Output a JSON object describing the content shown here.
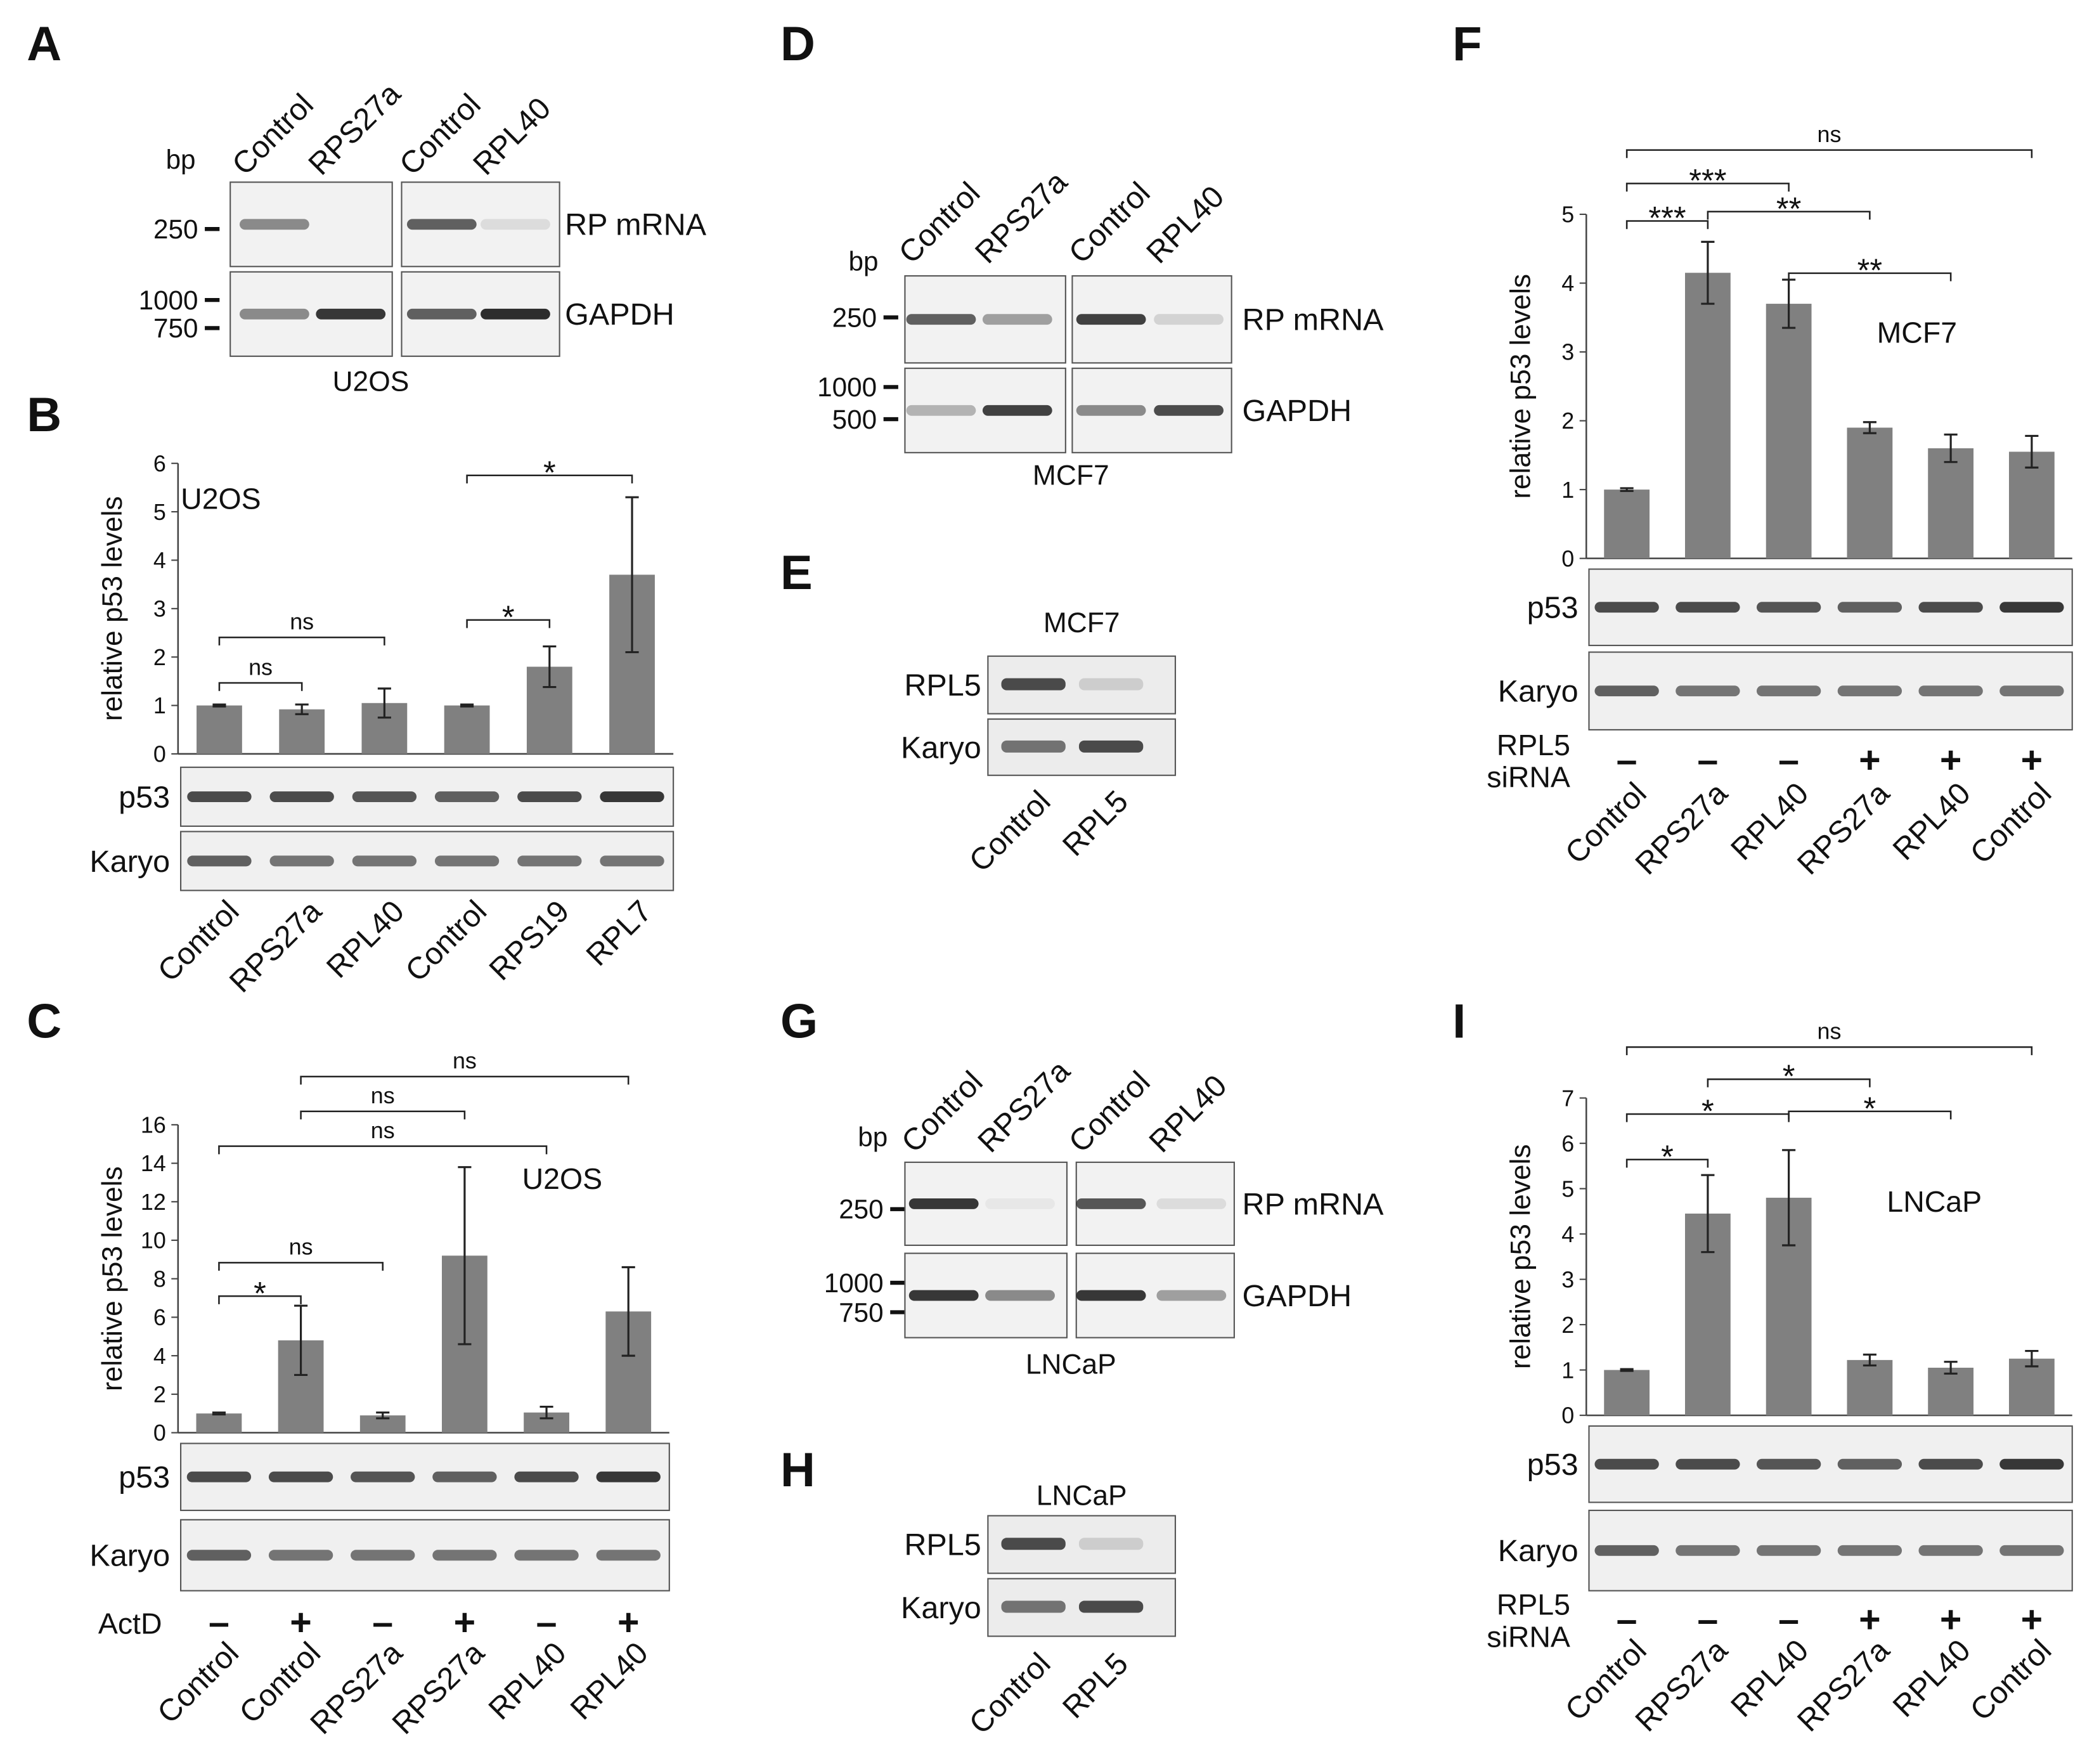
{
  "panel_labels": [
    "A",
    "B",
    "C",
    "D",
    "E",
    "F",
    "G",
    "H",
    "I"
  ],
  "chart_data": [
    {
      "type": "bar",
      "ylabel": "relative p53 levels",
      "annotation": "U2OS",
      "color": "#808080",
      "categories": [
        "Control",
        "RPS27a",
        "RPL40",
        "Control",
        "RPS19",
        "RPL7"
      ],
      "values": [
        1,
        0.92,
        1.05,
        1,
        1.8,
        3.7
      ],
      "errors": [
        0.02,
        0.1,
        0.3,
        0.02,
        0.42,
        1.6
      ],
      "ylim": [
        0,
        6
      ],
      "yticks": [
        0,
        1,
        2,
        3,
        4,
        5,
        6
      ],
      "brackets": [
        {
          "label": "ns",
          "from": 0,
          "to": 1
        },
        {
          "label": "ns",
          "from": 0,
          "to": 2
        },
        {
          "label": "*",
          "from": 3,
          "to": 4
        },
        {
          "label": "*",
          "from": 3,
          "to": 5
        }
      ],
      "blot_rows": [
        "p53",
        "Karyo"
      ]
    },
    {
      "type": "bar",
      "ylabel": "relative p53 levels",
      "annotation": "U2OS",
      "color": "#808080",
      "categories": [
        "Control",
        "Control",
        "RPS27a",
        "RPS27a",
        "RPL40",
        "RPL40"
      ],
      "values": [
        1,
        4.8,
        0.9,
        9.2,
        1.05,
        6.3
      ],
      "errors": [
        0.05,
        1.8,
        0.15,
        4.6,
        0.3,
        2.3
      ],
      "ylim": [
        0,
        16
      ],
      "yticks": [
        0,
        2,
        4,
        6,
        8,
        10,
        12,
        14,
        16
      ],
      "brackets": [
        {
          "label": "*",
          "from": 0,
          "to": 1
        },
        {
          "label": "ns",
          "from": 0,
          "to": 2
        },
        {
          "label": "ns",
          "from": 0,
          "to": 4
        },
        {
          "label": "ns",
          "from": 1,
          "to": 3
        },
        {
          "label": "ns",
          "from": 1,
          "to": 5
        }
      ],
      "blot_rows": [
        "p53",
        "Karyo"
      ],
      "treatment_label": [
        "ActD"
      ],
      "treatment": [
        "–",
        "+",
        "–",
        "+",
        "–",
        "+"
      ]
    },
    {
      "type": "bar",
      "ylabel": "relative p53 levels",
      "annotation": "MCF7",
      "color": "#808080",
      "categories": [
        "Control",
        "RPS27a",
        "RPL40",
        "RPS27a",
        "RPL40",
        "Control"
      ],
      "values": [
        1,
        4.15,
        3.7,
        1.9,
        1.6,
        1.55
      ],
      "errors": [
        0.02,
        0.45,
        0.35,
        0.08,
        0.2,
        0.23
      ],
      "ylim": [
        0,
        5
      ],
      "yticks": [
        0,
        1,
        2,
        3,
        4,
        5
      ],
      "brackets": [
        {
          "label": "***",
          "from": 0,
          "to": 1
        },
        {
          "label": "***",
          "from": 0,
          "to": 2
        },
        {
          "label": "**",
          "from": 1,
          "to": 3
        },
        {
          "label": "**",
          "from": 2,
          "to": 4
        },
        {
          "label": "ns",
          "from": 0,
          "to": 5
        }
      ],
      "blot_rows": [
        "p53",
        "Karyo"
      ],
      "treatment_label": [
        "RPL5",
        "siRNA"
      ],
      "treatment": [
        "–",
        "–",
        "–",
        "+",
        "+",
        "+"
      ]
    },
    {
      "type": "bar",
      "ylabel": "relative p53 levels",
      "annotation": "LNCaP",
      "color": "#808080",
      "categories": [
        "Control",
        "RPS27a",
        "RPL40",
        "RPS27a",
        "RPL40",
        "Control"
      ],
      "values": [
        1,
        4.45,
        4.8,
        1.22,
        1.05,
        1.25
      ],
      "errors": [
        0.02,
        0.85,
        1.05,
        0.12,
        0.13,
        0.17
      ],
      "ylim": [
        0,
        7
      ],
      "yticks": [
        0,
        1,
        2,
        3,
        4,
        5,
        6,
        7
      ],
      "brackets": [
        {
          "label": "*",
          "from": 0,
          "to": 1
        },
        {
          "label": "*",
          "from": 0,
          "to": 2
        },
        {
          "label": "*",
          "from": 1,
          "to": 3
        },
        {
          "label": "*",
          "from": 2,
          "to": 4
        },
        {
          "label": "ns",
          "from": 0,
          "to": 5
        }
      ],
      "blot_rows": [
        "p53",
        "Karyo"
      ],
      "treatment_label": [
        "RPL5",
        "siRNA"
      ],
      "treatment": [
        "–",
        "–",
        "–",
        "+",
        "+",
        "+"
      ]
    }
  ],
  "gels": [
    {
      "bp_label": "bp",
      "lanes": [
        "Control",
        "RPS27a",
        "Control",
        "RPL40"
      ],
      "markers": [
        "250",
        "1000",
        "750"
      ],
      "rows": [
        "RP mRNA",
        "GAPDH"
      ],
      "cell_line": "U2OS"
    },
    {
      "bp_label": "bp",
      "lanes": [
        "Control",
        "RPS27a",
        "Control",
        "RPL40"
      ],
      "markers": [
        "250",
        "1000",
        "500"
      ],
      "rows": [
        "RP mRNA",
        "GAPDH"
      ],
      "cell_line": "MCF7"
    },
    {
      "bp_label": "bp",
      "lanes": [
        "Control",
        "RPS27a",
        "Control",
        "RPL40"
      ],
      "markers": [
        "250",
        "1000",
        "750"
      ],
      "rows": [
        "RP mRNA",
        "GAPDH"
      ],
      "cell_line": "LNCaP"
    }
  ],
  "blots": [
    {
      "cell_line": "MCF7",
      "rows": [
        "RPL5",
        "Karyo"
      ],
      "lanes": [
        "Control",
        "RPL5"
      ]
    },
    {
      "cell_line": "LNCaP",
      "rows": [
        "RPL5",
        "Karyo"
      ],
      "lanes": [
        "Control",
        "RPL5"
      ]
    }
  ]
}
